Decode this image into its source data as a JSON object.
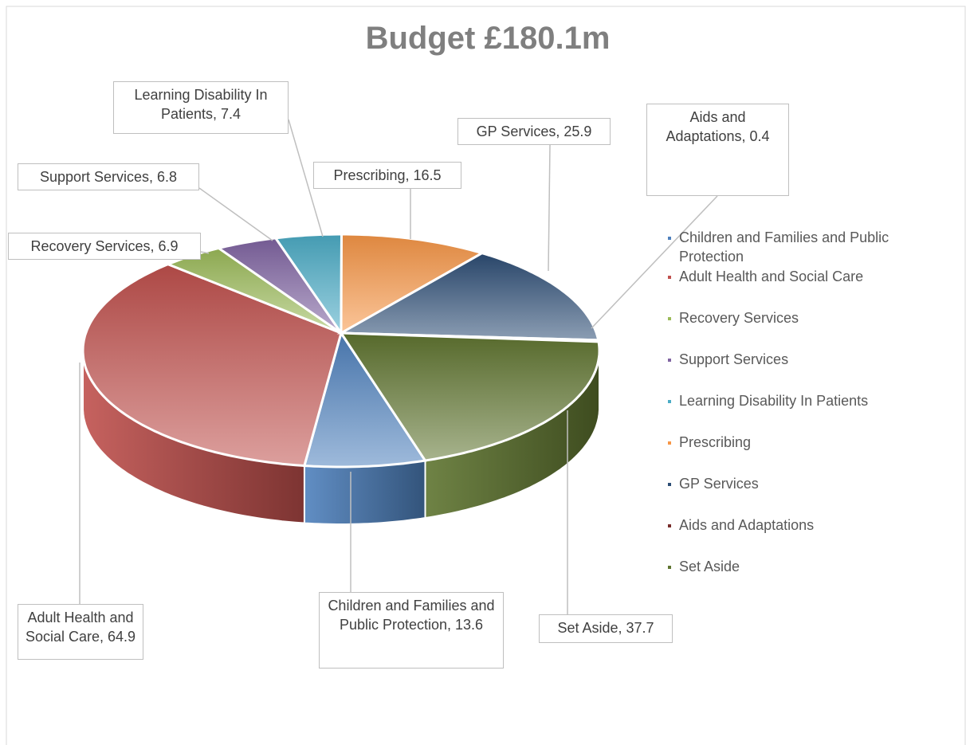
{
  "chart_data": {
    "type": "pie3d",
    "title": "Budget £180.1m",
    "categories": [
      "Children and Families and Public Protection",
      "Adult Health and Social Care",
      "Recovery Services",
      "Support Services",
      "Learning Disability In Patients",
      "Prescribing",
      "GP Services",
      "Aids and Adaptations",
      "Set Aside"
    ],
    "values": [
      13.6,
      64.9,
      6.9,
      6.8,
      7.4,
      16.5,
      25.9,
      0.4,
      37.7
    ],
    "value_labels": [
      "Children and Families and Public Protection, 13.6",
      "Adult Health and Social Care, 64.9",
      "Recovery Services, 6.9",
      "Support Services, 6.8",
      "Learning Disability In Patients, 7.4",
      "Prescribing, 16.5",
      "GP Services, 25.9",
      "Aids and Adaptations, 0.4",
      "Set Aside, 37.7"
    ],
    "colors": [
      "#4f81bd",
      "#c0504d",
      "#9bbb59",
      "#8064a2",
      "#4bacc6",
      "#f79646",
      "#2c4d75",
      "#772c2a",
      "#5f7530"
    ],
    "first_slice_angle": 161,
    "legend": "right"
  }
}
